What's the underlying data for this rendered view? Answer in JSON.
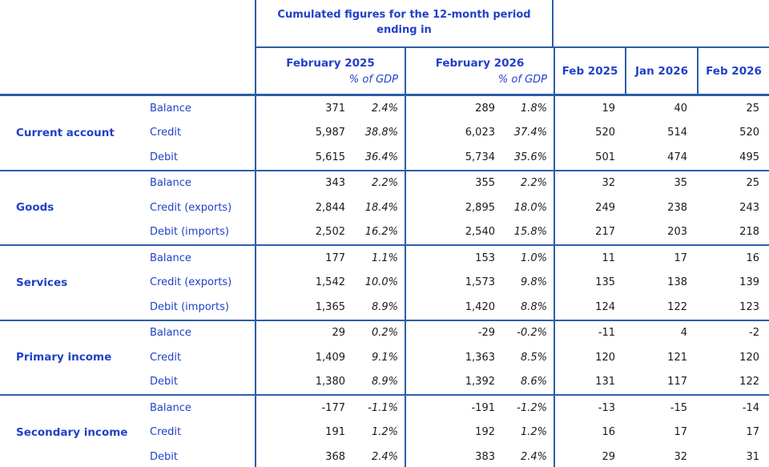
{
  "colors": {
    "border_blue": "#2E5DA8",
    "text_blue": "#2141C8",
    "value_black": "#1a1a1a"
  },
  "header": {
    "cumulated_title": "Cumulated figures for the 12-month period ending in",
    "period_columns": [
      {
        "label": "February 2025",
        "sublabel": "% of GDP"
      },
      {
        "label": "February 2026",
        "sublabel": "% of GDP"
      }
    ],
    "month_columns": [
      "Feb 2025",
      "Jan 2026",
      "Feb 2026"
    ]
  },
  "groups": [
    {
      "label": "Current account",
      "rows": [
        {
          "label": "Balance",
          "v1": "371",
          "p1": "2.4%",
          "v2": "289",
          "p2": "1.8%",
          "m1": "19",
          "m2": "40",
          "m3": "25"
        },
        {
          "label": "Credit",
          "v1": "5,987",
          "p1": "38.8%",
          "v2": "6,023",
          "p2": "37.4%",
          "m1": "520",
          "m2": "514",
          "m3": "520"
        },
        {
          "label": "Debit",
          "v1": "5,615",
          "p1": "36.4%",
          "v2": "5,734",
          "p2": "35.6%",
          "m1": "501",
          "m2": "474",
          "m3": "495"
        }
      ]
    },
    {
      "label": "Goods",
      "rows": [
        {
          "label": "Balance",
          "v1": "343",
          "p1": "2.2%",
          "v2": "355",
          "p2": "2.2%",
          "m1": "32",
          "m2": "35",
          "m3": "25"
        },
        {
          "label": "Credit (exports)",
          "v1": "2,844",
          "p1": "18.4%",
          "v2": "2,895",
          "p2": "18.0%",
          "m1": "249",
          "m2": "238",
          "m3": "243"
        },
        {
          "label": "Debit (imports)",
          "v1": "2,502",
          "p1": "16.2%",
          "v2": "2,540",
          "p2": "15.8%",
          "m1": "217",
          "m2": "203",
          "m3": "218"
        }
      ]
    },
    {
      "label": "Services",
      "rows": [
        {
          "label": "Balance",
          "v1": "177",
          "p1": "1.1%",
          "v2": "153",
          "p2": "1.0%",
          "m1": "11",
          "m2": "17",
          "m3": "16"
        },
        {
          "label": "Credit (exports)",
          "v1": "1,542",
          "p1": "10.0%",
          "v2": "1,573",
          "p2": "9.8%",
          "m1": "135",
          "m2": "138",
          "m3": "139"
        },
        {
          "label": "Debit (imports)",
          "v1": "1,365",
          "p1": "8.9%",
          "v2": "1,420",
          "p2": "8.8%",
          "m1": "124",
          "m2": "122",
          "m3": "123"
        }
      ]
    },
    {
      "label": "Primary income",
      "rows": [
        {
          "label": "Balance",
          "v1": "29",
          "p1": "0.2%",
          "v2": "-29",
          "p2": "-0.2%",
          "m1": "-11",
          "m2": "4",
          "m3": "-2"
        },
        {
          "label": "Credit",
          "v1": "1,409",
          "p1": "9.1%",
          "v2": "1,363",
          "p2": "8.5%",
          "m1": "120",
          "m2": "121",
          "m3": "120"
        },
        {
          "label": "Debit",
          "v1": "1,380",
          "p1": "8.9%",
          "v2": "1,392",
          "p2": "8.6%",
          "m1": "131",
          "m2": "117",
          "m3": "122"
        }
      ]
    },
    {
      "label": "Secondary income",
      "rows": [
        {
          "label": "Balance",
          "v1": "-177",
          "p1": "-1.1%",
          "v2": "-191",
          "p2": "-1.2%",
          "m1": "-13",
          "m2": "-15",
          "m3": "-14"
        },
        {
          "label": "Credit",
          "v1": "191",
          "p1": "1.2%",
          "v2": "192",
          "p2": "1.2%",
          "m1": "16",
          "m2": "17",
          "m3": "17"
        },
        {
          "label": "Debit",
          "v1": "368",
          "p1": "2.4%",
          "v2": "383",
          "p2": "2.4%",
          "m1": "29",
          "m2": "32",
          "m3": "31"
        }
      ]
    }
  ]
}
